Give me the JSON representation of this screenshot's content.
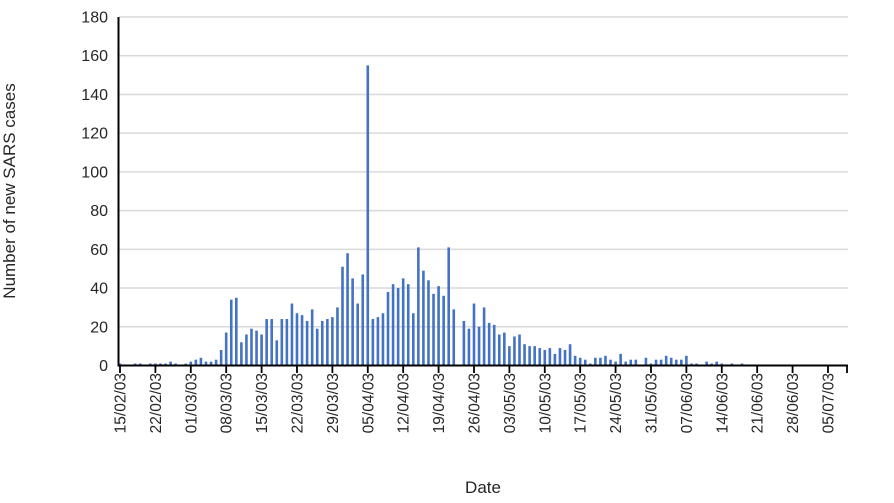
{
  "chart_data": {
    "type": "bar",
    "title": "",
    "xlabel": "Date",
    "ylabel": "Number of new SARS cases",
    "x_unit": "day",
    "x_tick_labels": [
      "15/02/03",
      "22/02/03",
      "01/03/03",
      "08/03/03",
      "15/03/03",
      "22/03/03",
      "29/03/03",
      "05/04/03",
      "12/04/03",
      "19/04/03",
      "26/04/03",
      "03/05/03",
      "10/05/03",
      "17/05/03",
      "24/05/03",
      "31/05/03",
      "07/06/03",
      "14/06/03",
      "21/06/03",
      "28/06/03",
      "05/07/03"
    ],
    "label_every_n_days": 7,
    "values": [
      1,
      0,
      0,
      1,
      1,
      0,
      1,
      1,
      1,
      1,
      2,
      1,
      0,
      1,
      2,
      3,
      4,
      2,
      2,
      3,
      8,
      17,
      34,
      35,
      12,
      16,
      19,
      18,
      16,
      24,
      24,
      13,
      24,
      24,
      32,
      27,
      26,
      23,
      29,
      19,
      23,
      24,
      25,
      30,
      51,
      58,
      45,
      32,
      47,
      155,
      24,
      25,
      27,
      38,
      42,
      40,
      45,
      42,
      27,
      61,
      49,
      44,
      37,
      41,
      36,
      61,
      29,
      0,
      23,
      19,
      32,
      20,
      30,
      22,
      21,
      16,
      17,
      10,
      15,
      16,
      11,
      10,
      10,
      9,
      8,
      9,
      6,
      9,
      8,
      11,
      5,
      4,
      3,
      1,
      4,
      4,
      5,
      3,
      2,
      6,
      2,
      3,
      3,
      0,
      4,
      1,
      3,
      3,
      5,
      4,
      3,
      3,
      5,
      1,
      1,
      0,
      2,
      1,
      2,
      1,
      0,
      1,
      0,
      1,
      0,
      0,
      0,
      0,
      0,
      0,
      0,
      0,
      0,
      0,
      0,
      0,
      0,
      0,
      0,
      0,
      0,
      0,
      0
    ],
    "ylim": [
      0,
      180
    ],
    "ytick_step": 20,
    "y_tick_labels": [
      "0",
      "20",
      "40",
      "60",
      "80",
      "100",
      "120",
      "140",
      "160",
      "180"
    ],
    "grid": "horizontal",
    "legend": "none",
    "bar_color": "#4472C4",
    "gridline_color": "#D9D9D9",
    "axis_color": "#000000",
    "text_color": "#262626"
  }
}
